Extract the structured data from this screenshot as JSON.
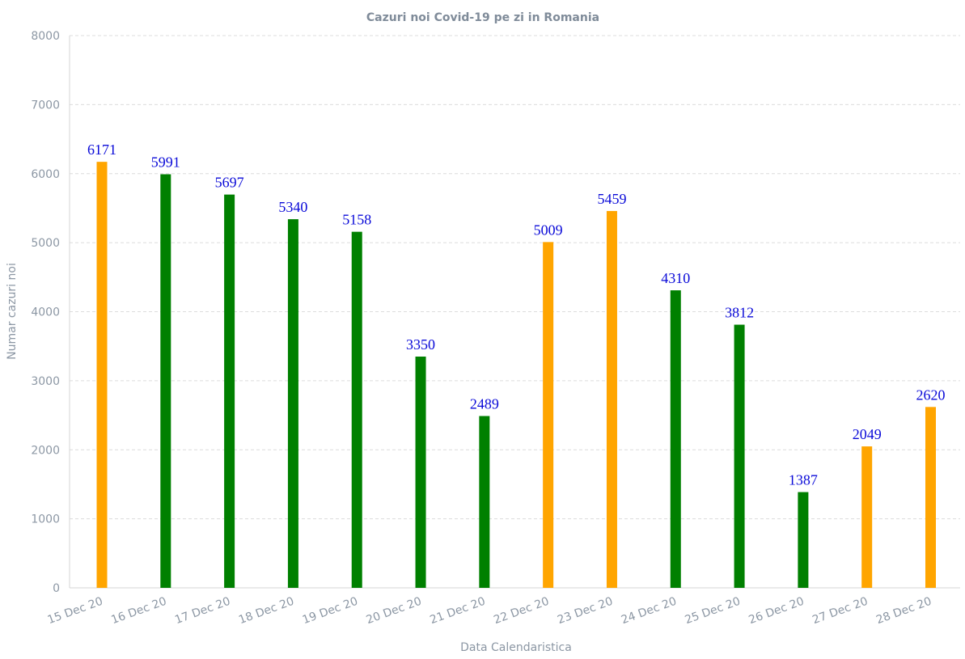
{
  "chart_data": {
    "type": "bar",
    "title": "Cazuri noi Covid-19 pe zi in Romania",
    "xlabel": "Data Calendaristica",
    "ylabel": "Numar cazuri noi",
    "ylim": [
      0,
      8000
    ],
    "yticks": [
      0,
      1000,
      2000,
      3000,
      4000,
      5000,
      6000,
      7000,
      8000
    ],
    "grid": true,
    "categories": [
      "15 Dec 20",
      "16 Dec 20",
      "17 Dec 20",
      "18 Dec 20",
      "19 Dec 20",
      "20 Dec 20",
      "21 Dec 20",
      "22 Dec 20",
      "23 Dec 20",
      "24 Dec 20",
      "25 Dec 20",
      "26 Dec 20",
      "27 Dec 20",
      "28 Dec 20"
    ],
    "values": [
      6171,
      5991,
      5697,
      5340,
      5158,
      3350,
      2489,
      5009,
      5459,
      4310,
      3812,
      1387,
      2049,
      2620
    ],
    "bar_colors": [
      "#ffa500",
      "#008000",
      "#008000",
      "#008000",
      "#008000",
      "#008000",
      "#008000",
      "#ffa500",
      "#ffa500",
      "#008000",
      "#008000",
      "#008000",
      "#ffa500",
      "#ffa500"
    ],
    "data_labels": true
  },
  "colors": {
    "increase": "#ffa500",
    "decrease": "#008000",
    "label": "#0a0ad8",
    "axis_text": "#8c97a4"
  }
}
